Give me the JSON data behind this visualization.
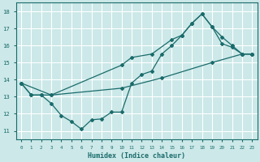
{
  "xlabel": "Humidex (Indice chaleur)",
  "bg_color": "#cce8e8",
  "grid_color": "#ffffff",
  "line_color": "#1a6b6b",
  "xlim": [
    -0.5,
    23.5
  ],
  "ylim": [
    10.5,
    18.5
  ],
  "xticks": [
    0,
    1,
    2,
    3,
    4,
    5,
    6,
    7,
    8,
    9,
    10,
    11,
    12,
    13,
    14,
    15,
    16,
    17,
    18,
    19,
    20,
    21,
    22,
    23
  ],
  "yticks": [
    11,
    12,
    13,
    14,
    15,
    16,
    17,
    18
  ],
  "curve1_x": [
    0,
    1,
    2,
    3,
    4,
    5,
    6,
    7,
    8,
    9,
    10,
    11,
    12,
    13,
    14,
    15,
    16,
    17,
    18,
    19,
    20,
    21,
    22,
    23
  ],
  "curve1_y": [
    13.8,
    13.1,
    13.1,
    12.6,
    11.9,
    11.55,
    11.1,
    11.65,
    11.7,
    12.1,
    12.1,
    13.8,
    14.3,
    14.5,
    15.5,
    16.0,
    16.6,
    17.3,
    17.85,
    17.1,
    16.1,
    15.9,
    15.5,
    15.5
  ],
  "curve2_x": [
    0,
    1,
    2,
    3,
    10,
    11,
    13,
    15,
    16,
    17,
    18,
    19,
    20,
    21,
    22,
    23
  ],
  "curve2_y": [
    13.8,
    13.1,
    13.1,
    13.1,
    14.85,
    15.3,
    15.5,
    16.35,
    16.6,
    17.3,
    17.85,
    17.1,
    16.5,
    16.0,
    15.5,
    15.5
  ],
  "curve3_x": [
    0,
    3,
    10,
    14,
    19,
    22,
    23
  ],
  "curve3_y": [
    13.8,
    13.1,
    13.5,
    14.1,
    15.0,
    15.5,
    15.5
  ]
}
